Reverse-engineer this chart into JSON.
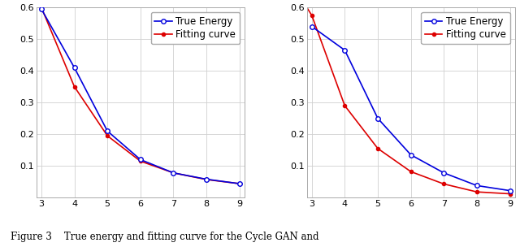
{
  "left": {
    "x": [
      3,
      4,
      5,
      6,
      7,
      8,
      9
    ],
    "true_energy": [
      0.595,
      0.41,
      0.21,
      0.12,
      0.078,
      0.058,
      0.044
    ],
    "fitting_curve_x": [
      2.85,
      3,
      4,
      5,
      6,
      7,
      8,
      9
    ],
    "fitting_curve": [
      0.6,
      0.6,
      0.35,
      0.195,
      0.115,
      0.078,
      0.057,
      0.044
    ],
    "ylim": [
      0,
      0.6
    ],
    "xlim": [
      2.85,
      9.15
    ],
    "yticks": [
      0,
      0.1,
      0.2,
      0.3,
      0.4,
      0.5,
      0.6
    ],
    "xticks": [
      3,
      4,
      5,
      6,
      7,
      8,
      9
    ]
  },
  "right": {
    "x": [
      3,
      4,
      5,
      6,
      7,
      8,
      9
    ],
    "true_energy": [
      0.54,
      0.465,
      0.25,
      0.135,
      0.078,
      0.038,
      0.022
    ],
    "fitting_curve_x": [
      2.85,
      3,
      4,
      5,
      6,
      7,
      8,
      9
    ],
    "fitting_curve": [
      0.6,
      0.575,
      0.29,
      0.155,
      0.082,
      0.043,
      0.018,
      0.012
    ],
    "ylim": [
      0,
      0.6
    ],
    "xlim": [
      2.85,
      9.15
    ],
    "yticks": [
      0,
      0.1,
      0.2,
      0.3,
      0.4,
      0.5,
      0.6
    ],
    "xticks": [
      3,
      4,
      5,
      6,
      7,
      8,
      9
    ]
  },
  "true_energy_color": "#0000dd",
  "fitting_curve_color": "#dd0000",
  "marker_true": "o",
  "marker_fit": "o",
  "marker_size_true": 4,
  "marker_size_fit": 3,
  "line_width": 1.2,
  "legend_true": "True Energy",
  "legend_fit": "Fitting curve",
  "caption": "Figure 3    True energy and fitting curve for the Cycle GAN and",
  "background_color": "#ffffff",
  "grid_color": "#d0d0d0",
  "tick_fontsize": 8,
  "legend_fontsize": 8.5
}
